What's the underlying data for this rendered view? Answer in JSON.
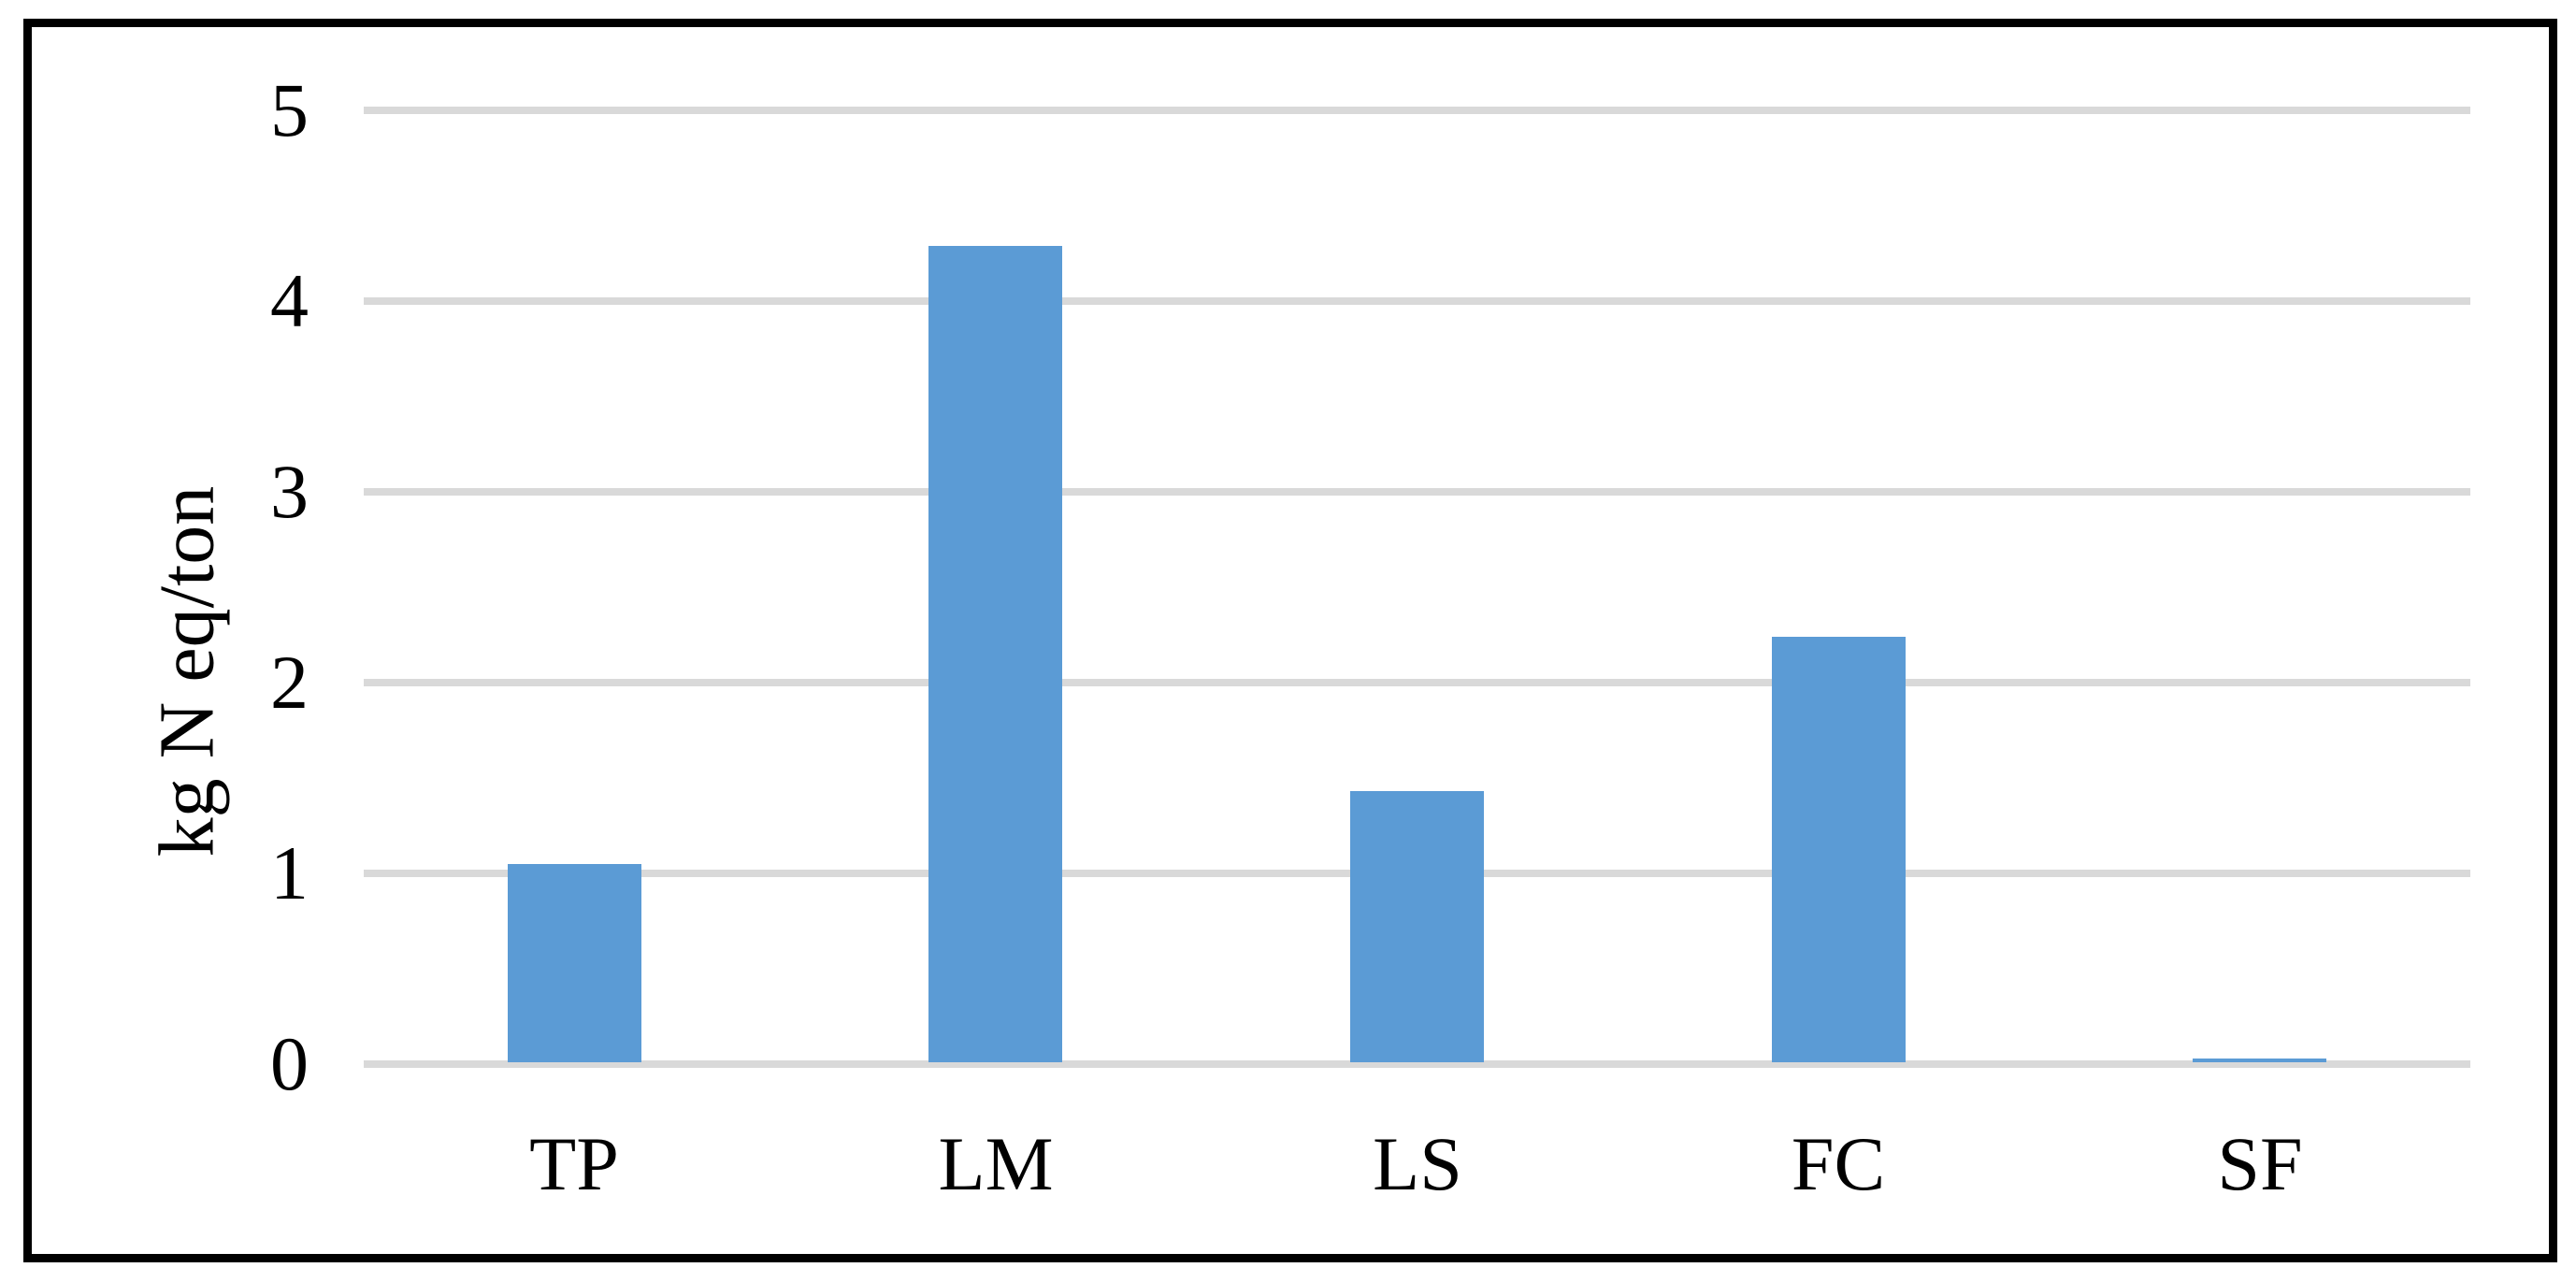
{
  "chart_data": {
    "type": "bar",
    "categories": [
      "TP",
      "LM",
      "LS",
      "FC",
      "SF"
    ],
    "values": [
      1.04,
      4.28,
      1.42,
      2.23,
      0.02
    ],
    "title": "",
    "xlabel": "",
    "ylabel": "kg N eq/ton",
    "ylim": [
      0,
      5
    ],
    "yticks": [
      0,
      1,
      2,
      3,
      4,
      5
    ],
    "grid": true,
    "legend": "none",
    "bar_color": "#5B9BD5",
    "gridline_color": "#D9D9D9",
    "text_color": "#000000",
    "frame_color": "#000000",
    "background_color": "#FFFFFF"
  }
}
